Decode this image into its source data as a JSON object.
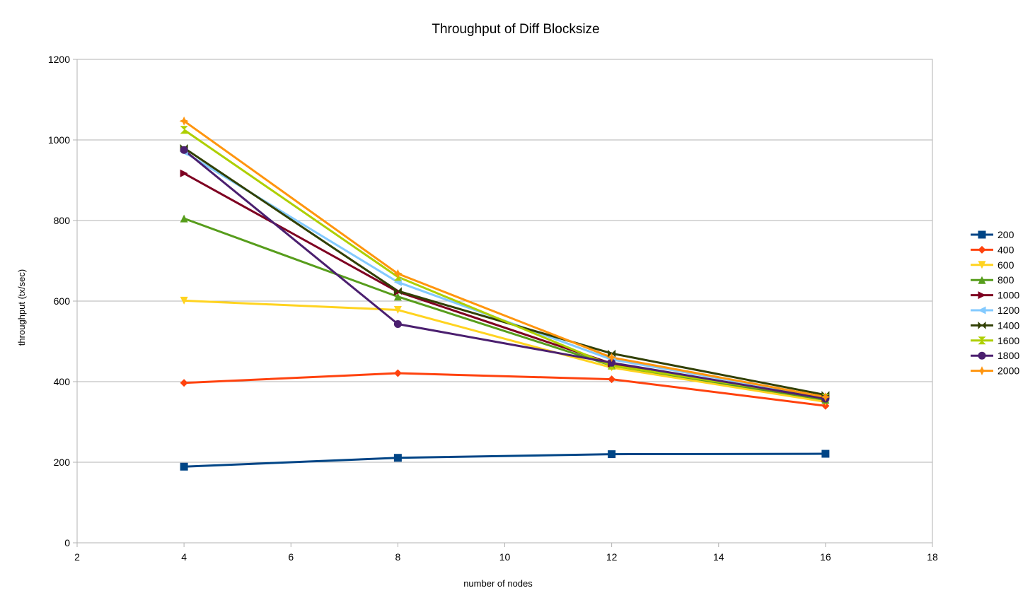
{
  "chart_data": {
    "type": "line",
    "title": "Throughput of Diff Blocksize",
    "xlabel": "number of nodes",
    "ylabel": "throughput (tx/sec)",
    "xlim": [
      2,
      18
    ],
    "ylim": [
      0,
      1200
    ],
    "xticks": [
      2,
      4,
      6,
      8,
      10,
      12,
      14,
      16,
      18
    ],
    "yticks": [
      0,
      200,
      400,
      600,
      800,
      1000,
      1200
    ],
    "grid": "horizontal",
    "legend_position": "right",
    "x": [
      4,
      8,
      12,
      16
    ],
    "series": [
      {
        "name": "200",
        "color": "#004586",
        "marker": "square",
        "values": [
          189,
          211,
          220,
          221
        ]
      },
      {
        "name": "400",
        "color": "#ff420e",
        "marker": "diamond",
        "values": [
          397,
          421,
          406,
          340
        ]
      },
      {
        "name": "600",
        "color": "#ffd320",
        "marker": "triangle-down",
        "values": [
          601,
          578,
          435,
          350
        ]
      },
      {
        "name": "800",
        "color": "#579d1c",
        "marker": "triangle-up",
        "values": [
          805,
          611,
          440,
          355
        ]
      },
      {
        "name": "1000",
        "color": "#7e0021",
        "marker": "triangle-right",
        "values": [
          917,
          623,
          445,
          358
        ]
      },
      {
        "name": "1200",
        "color": "#83caff",
        "marker": "triangle-left",
        "values": [
          970,
          647,
          455,
          362
        ]
      },
      {
        "name": "1400",
        "color": "#314004",
        "marker": "bowtie",
        "values": [
          980,
          625,
          470,
          367
        ]
      },
      {
        "name": "1600",
        "color": "#aecf00",
        "marker": "hourglass",
        "values": [
          1025,
          660,
          440,
          360
        ]
      },
      {
        "name": "1800",
        "color": "#4b1f6f",
        "marker": "circle",
        "values": [
          975,
          543,
          447,
          358
        ]
      },
      {
        "name": "2000",
        "color": "#ff950e",
        "marker": "star",
        "values": [
          1047,
          668,
          460,
          362
        ]
      }
    ]
  }
}
